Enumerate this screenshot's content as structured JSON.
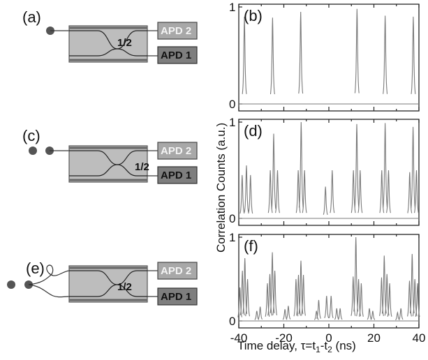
{
  "schematic": {
    "panel_labels": [
      "(a)",
      "(c)",
      "(e)"
    ],
    "ratio_label": "1/2",
    "apd_top": "APD 2",
    "apd_bottom": "APD 1",
    "photon_counts": [
      1,
      2,
      2
    ]
  },
  "chart_data": [
    {
      "type": "line",
      "panel": "(b)",
      "peaks": [
        {
          "x": -37.5,
          "y": 0.9
        },
        {
          "x": -25,
          "y": 0.89
        },
        {
          "x": -12.5,
          "y": 0.95
        },
        {
          "x": 12.5,
          "y": 0.98
        },
        {
          "x": 25,
          "y": 0.91
        },
        {
          "x": 37.5,
          "y": 0.9
        }
      ],
      "ylim": [
        0,
        1
      ],
      "xlim": [
        -40,
        40
      ],
      "ytick_labels": [
        "0",
        "1"
      ]
    },
    {
      "type": "line",
      "panel": "(d)",
      "peaks": [
        {
          "x": -38.5,
          "y": 0.45
        },
        {
          "x": -36.6,
          "y": 0.55
        },
        {
          "x": -34.8,
          "y": 0.45
        },
        {
          "x": -26.0,
          "y": 0.5
        },
        {
          "x": -24.5,
          "y": 0.88
        },
        {
          "x": -22.8,
          "y": 0.5
        },
        {
          "x": -13.6,
          "y": 0.5
        },
        {
          "x": -12.3,
          "y": 1.0
        },
        {
          "x": -10.8,
          "y": 0.5
        },
        {
          "x": -1.5,
          "y": 0.33
        },
        {
          "x": 1.5,
          "y": 0.5
        },
        {
          "x": 10.9,
          "y": 0.5
        },
        {
          "x": 12.4,
          "y": 0.98
        },
        {
          "x": 13.9,
          "y": 0.5
        },
        {
          "x": 23.5,
          "y": 0.5
        },
        {
          "x": 25.0,
          "y": 0.99
        },
        {
          "x": 26.5,
          "y": 0.5
        },
        {
          "x": 35.9,
          "y": 0.48
        },
        {
          "x": 37.4,
          "y": 0.95
        },
        {
          "x": 38.9,
          "y": 0.5
        }
      ],
      "ylim": [
        0,
        1
      ],
      "xlim": [
        -40,
        40
      ],
      "ytick_labels": [
        "0",
        "1"
      ]
    },
    {
      "type": "line",
      "panel": "(f)",
      "peaks": [
        {
          "x": -39.5,
          "y": 0.4
        },
        {
          "x": -38.4,
          "y": 0.6
        },
        {
          "x": -37.3,
          "y": 0.75
        },
        {
          "x": -36.1,
          "y": 0.5
        },
        {
          "x": -32.0,
          "y": 0.12
        },
        {
          "x": -30.5,
          "y": 0.17
        },
        {
          "x": -27.3,
          "y": 0.45
        },
        {
          "x": -26.2,
          "y": 0.56
        },
        {
          "x": -25.1,
          "y": 0.82
        },
        {
          "x": -24.0,
          "y": 0.6
        },
        {
          "x": -19.5,
          "y": 0.14
        },
        {
          "x": -18.0,
          "y": 0.18
        },
        {
          "x": -14.6,
          "y": 0.5
        },
        {
          "x": -13.5,
          "y": 0.55
        },
        {
          "x": -12.4,
          "y": 0.72
        },
        {
          "x": -11.3,
          "y": 0.55
        },
        {
          "x": -5.5,
          "y": 0.12
        },
        {
          "x": -4.5,
          "y": 0.25
        },
        {
          "x": -1.0,
          "y": 0.3
        },
        {
          "x": 1.0,
          "y": 0.3
        },
        {
          "x": 3.5,
          "y": 0.15
        },
        {
          "x": 5.0,
          "y": 0.15
        },
        {
          "x": 10.8,
          "y": 0.53
        },
        {
          "x": 12.0,
          "y": 1.0
        },
        {
          "x": 13.2,
          "y": 0.5
        },
        {
          "x": 14.4,
          "y": 0.45
        },
        {
          "x": 18.0,
          "y": 0.15
        },
        {
          "x": 19.5,
          "y": 0.12
        },
        {
          "x": 23.4,
          "y": 0.52
        },
        {
          "x": 24.6,
          "y": 0.78
        },
        {
          "x": 25.8,
          "y": 0.56
        },
        {
          "x": 27.0,
          "y": 0.45
        },
        {
          "x": 30.5,
          "y": 0.1
        },
        {
          "x": 32.0,
          "y": 0.15
        },
        {
          "x": 35.8,
          "y": 0.48
        },
        {
          "x": 37.0,
          "y": 0.8
        },
        {
          "x": 38.2,
          "y": 0.5
        },
        {
          "x": 39.4,
          "y": 0.45
        }
      ],
      "ylim": [
        0,
        1
      ],
      "xlim": [
        -40,
        40
      ],
      "ytick_labels": [
        "0",
        "1"
      ],
      "xtick_labels": [
        "-40",
        "-20",
        "0",
        "20",
        "40"
      ]
    }
  ],
  "axes": {
    "ylabel": "Correlation Counts (a.u.)",
    "xlabel_prefix": "Time delay, τ=t",
    "xlabel_sub1": "1",
    "xlabel_mid": "-t",
    "xlabel_sub2": "2",
    "xlabel_suffix": " (ns)"
  },
  "colors": {
    "trace": "#7a7a7a",
    "photon": "#555555",
    "apd_top_fill": "#a8a8a8",
    "apd_bottom_fill": "#7e7e7e",
    "coupler_fill": "#bdbdbd"
  }
}
